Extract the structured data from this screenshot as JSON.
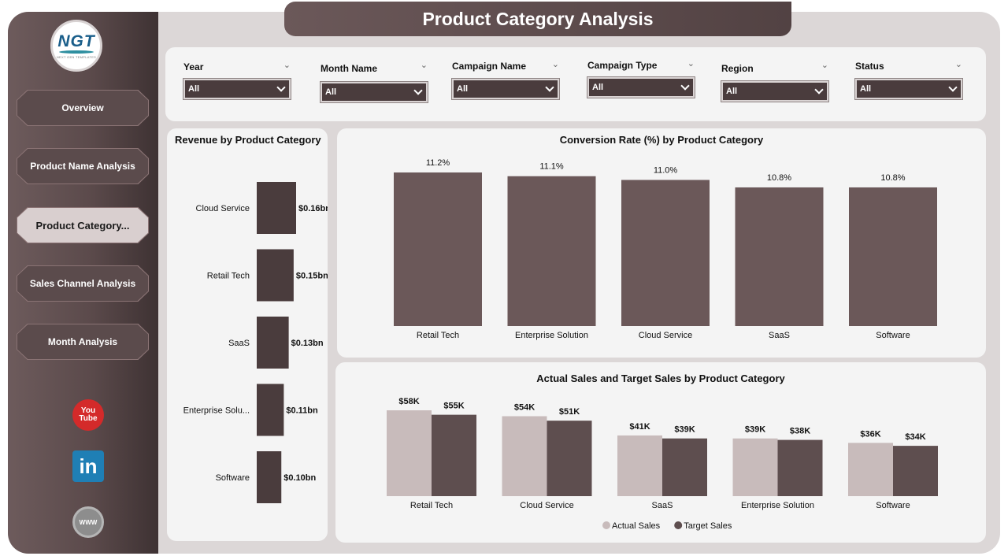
{
  "header": {
    "title": "Product Category Analysis"
  },
  "logo": {
    "letters": "NGT",
    "tagline": "NEXT GEN TEMPLATES"
  },
  "nav": [
    {
      "label": "Overview",
      "active": false
    },
    {
      "label": "Product Name Analysis",
      "active": false
    },
    {
      "label": "Product Category...",
      "active": true
    },
    {
      "label": "Sales Channel Analysis",
      "active": false
    },
    {
      "label": "Month Analysis",
      "active": false
    }
  ],
  "social": {
    "youtube_top": "You",
    "youtube_bottom": "Tube",
    "linkedin": "in",
    "web": "WWW"
  },
  "filters": [
    {
      "label": "Year",
      "value": "All"
    },
    {
      "label": "Month Name",
      "value": "All"
    },
    {
      "label": "Campaign Name",
      "value": "All"
    },
    {
      "label": "Campaign Type",
      "value": "All"
    },
    {
      "label": "Region",
      "value": "All"
    },
    {
      "label": "Status",
      "value": "All"
    }
  ],
  "chart_data": [
    {
      "type": "bar",
      "orientation": "horizontal",
      "title": "Revenue by Product Category",
      "categories": [
        "Cloud Service",
        "Retail Tech",
        "SaaS",
        "Enterprise Solu...",
        "Software"
      ],
      "values": [
        0.16,
        0.15,
        0.13,
        0.11,
        0.1
      ],
      "data_labels": [
        "$0.16bn",
        "$0.15bn",
        "$0.13bn",
        "$0.11bn",
        "$0.10bn"
      ],
      "xlim": [
        0,
        0.16
      ],
      "grid": false,
      "color": "#4a3c3d"
    },
    {
      "type": "bar",
      "title": "Conversion Rate (%) by Product Category",
      "categories": [
        "Retail Tech",
        "Enterprise Solution",
        "Cloud Service",
        "SaaS",
        "Software"
      ],
      "values": [
        11.2,
        11.1,
        11.0,
        10.8,
        10.8
      ],
      "data_labels": [
        "11.2%",
        "11.1%",
        "11.0%",
        "10.8%",
        "10.8%"
      ],
      "ylim": [
        0,
        11.2
      ],
      "grid": false,
      "color": "#6b5859"
    },
    {
      "type": "bar",
      "title": "Actual Sales and Target Sales by Product Category",
      "categories": [
        "Retail Tech",
        "Cloud Service",
        "SaaS",
        "Enterprise Solution",
        "Software"
      ],
      "series": [
        {
          "name": "Actual Sales",
          "values": [
            58,
            54,
            41,
            39,
            36
          ],
          "labels": [
            "$58K",
            "$54K",
            "$41K",
            "$39K",
            "$36K"
          ],
          "color": "#c8bbbb"
        },
        {
          "name": "Target Sales",
          "values": [
            55,
            51,
            39,
            38,
            34
          ],
          "labels": [
            "$55K",
            "$51K",
            "$39K",
            "$38K",
            "$34K"
          ],
          "color": "#5e4e4f"
        }
      ],
      "ylim": [
        0,
        58
      ],
      "legend": "bottom",
      "grid": false
    }
  ]
}
